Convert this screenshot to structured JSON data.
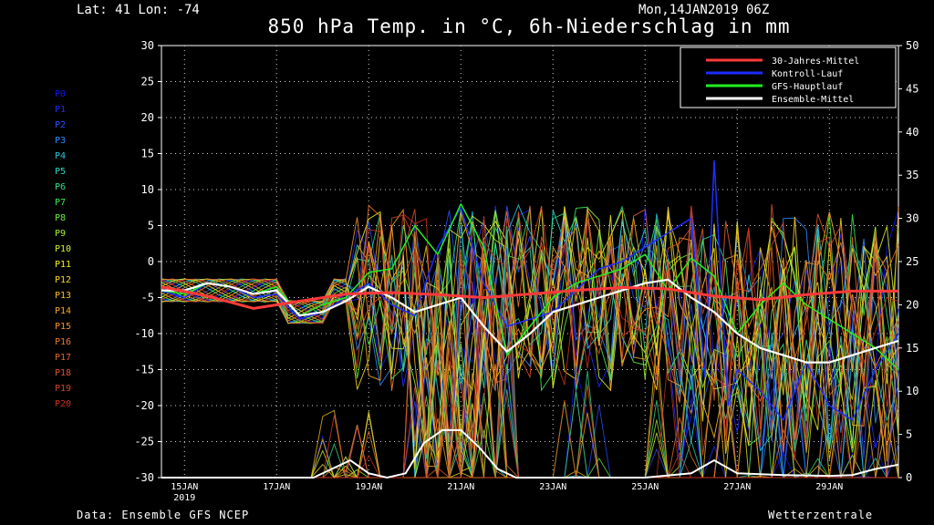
{
  "header": {
    "location": "Lat: 41 Lon: -74",
    "run": "Mon,14JAN2019 06Z"
  },
  "footer": {
    "source": "Data: Ensemble GFS NCEP",
    "brand": "Wetterzentrale"
  },
  "members": [
    {
      "label": "P0",
      "color": "#1515ff"
    },
    {
      "label": "P1",
      "color": "#1e2dff"
    },
    {
      "label": "P2",
      "color": "#2850ff"
    },
    {
      "label": "P3",
      "color": "#2c8cff"
    },
    {
      "label": "P4",
      "color": "#27c8e6"
    },
    {
      "label": "P5",
      "color": "#2dd8c4"
    },
    {
      "label": "P6",
      "color": "#2fe08a"
    },
    {
      "label": "P7",
      "color": "#3cea56"
    },
    {
      "label": "P8",
      "color": "#64f03c"
    },
    {
      "label": "P9",
      "color": "#a0f032"
    },
    {
      "label": "P10",
      "color": "#d6f02a"
    },
    {
      "label": "P11",
      "color": "#f5f020"
    },
    {
      "label": "P12",
      "color": "#f8d820"
    },
    {
      "label": "P13",
      "color": "#f8c020"
    },
    {
      "label": "P14",
      "color": "#f8a820"
    },
    {
      "label": "P15",
      "color": "#f89028"
    },
    {
      "label": "P16",
      "color": "#f07828"
    },
    {
      "label": "P17",
      "color": "#e86428"
    },
    {
      "label": "P18",
      "color": "#e05028"
    },
    {
      "label": "P19",
      "color": "#d84028"
    },
    {
      "label": "P20",
      "color": "#c83020"
    }
  ],
  "chart_data": {
    "type": "line",
    "title": "850 hPa Temp. in °C, 6h-Niederschlag in mm",
    "ylim": [
      -30,
      30
    ],
    "y2lim": [
      0,
      50
    ],
    "yticks": [
      "30",
      "25",
      "20",
      "15",
      "10",
      "5",
      "0",
      "-5",
      "-10",
      "-15",
      "-20",
      "-25",
      "-30"
    ],
    "y2ticks": [
      "50",
      "45",
      "40",
      "35",
      "30",
      "25",
      "20",
      "15",
      "10",
      "5",
      "0"
    ],
    "xlim": [
      14.5,
      30.5
    ],
    "xticks": [
      {
        "x": 15,
        "label": "15JAN",
        "sub": "2019"
      },
      {
        "x": 17,
        "label": "17JAN",
        "sub": ""
      },
      {
        "x": 19,
        "label": "19JAN",
        "sub": ""
      },
      {
        "x": 21,
        "label": "21JAN",
        "sub": ""
      },
      {
        "x": 23,
        "label": "23JAN",
        "sub": ""
      },
      {
        "x": 25,
        "label": "25JAN",
        "sub": ""
      },
      {
        "x": 27,
        "label": "27JAN",
        "sub": ""
      },
      {
        "x": 29,
        "label": "29JAN",
        "sub": ""
      }
    ],
    "grid": true,
    "legend_position": "top-right",
    "legend": [
      {
        "name": "30-Jahres-Mittel",
        "color": "#ff3a3a"
      },
      {
        "name": "Kontroll-Lauf",
        "color": "#1e2dff"
      },
      {
        "name": "GFS-Hauptlauf",
        "color": "#22ee22"
      },
      {
        "name": "Ensemble-Mittel",
        "color": "#ffffff"
      }
    ],
    "series": [
      {
        "key": "clim",
        "color": "#ff3a3a",
        "width": 3,
        "x": [
          14.5,
          15.5,
          16.5,
          17.5,
          18.5,
          19.5,
          20.5,
          21.5,
          22.5,
          23.5,
          24.5,
          25.5,
          26.5,
          27.5,
          28.5,
          29.5,
          30.5
        ],
        "y": [
          -3.5,
          -4.8,
          -6.5,
          -5.5,
          -4.5,
          -4.3,
          -4.6,
          -5,
          -4.5,
          -4,
          -3.6,
          -3.8,
          -4.8,
          -5.3,
          -4.6,
          -4.1,
          -4.1
        ]
      },
      {
        "key": "control",
        "color": "#1e2dff",
        "width": 1.5,
        "x": [
          14.5,
          15,
          15.5,
          16,
          16.5,
          17,
          17.5,
          18,
          18.5,
          19,
          19.5,
          20,
          20.5,
          21,
          21.5,
          22,
          22.5,
          23,
          23.5,
          24,
          24.5,
          25,
          25.5,
          26,
          26.3,
          26.5,
          26.8,
          27,
          27.5,
          28,
          28.5,
          29,
          29.5,
          30,
          30.5
        ],
        "y": [
          -4,
          -5,
          -3,
          -3.5,
          -5,
          -4.5,
          -8,
          -7,
          -5,
          -3,
          -6,
          -7.5,
          2,
          7.5,
          -3,
          -9,
          -8,
          -7,
          -4,
          -1,
          0,
          2,
          4,
          6,
          -16,
          14,
          -20,
          -15,
          -18,
          -22,
          -14,
          -20,
          -22,
          -15,
          -10
        ]
      },
      {
        "key": "main",
        "color": "#22ee22",
        "width": 1.5,
        "x": [
          14.5,
          15,
          15.5,
          16,
          16.5,
          17,
          17.5,
          18,
          18.5,
          19,
          19.5,
          20,
          20.5,
          21,
          21.5,
          22,
          22.5,
          23,
          23.5,
          24,
          24.5,
          25,
          25.5,
          26,
          26.5,
          27,
          27.5,
          28,
          28.5,
          29,
          29.5,
          30,
          30.5
        ],
        "y": [
          -4,
          -4.5,
          -3,
          -3.5,
          -4.5,
          -3.5,
          -7.5,
          -6,
          -5,
          -1.5,
          -1,
          5,
          1,
          8,
          2,
          -13,
          -9,
          -5,
          -3,
          -2,
          -1,
          1,
          -4,
          0.5,
          -2,
          -10,
          -6,
          -3,
          -6,
          -8,
          -10,
          -12,
          -15
        ]
      },
      {
        "key": "mean",
        "color": "#ffffff",
        "width": 2.2,
        "x": [
          14.5,
          15,
          15.5,
          16,
          16.5,
          17,
          17.5,
          18,
          18.5,
          19,
          19.5,
          20,
          20.5,
          21,
          21.5,
          22,
          22.5,
          23,
          23.5,
          24,
          24.5,
          25,
          25.5,
          26,
          26.5,
          27,
          27.5,
          28,
          28.5,
          29,
          29.5,
          30,
          30.5
        ],
        "y": [
          -4,
          -4,
          -3,
          -3.5,
          -4.5,
          -4,
          -7.5,
          -7,
          -5.5,
          -3.5,
          -5,
          -7,
          -6,
          -5,
          -9,
          -12.5,
          -10,
          -7,
          -6,
          -5,
          -4,
          -3,
          -2.5,
          -5,
          -7,
          -10,
          -12,
          -13,
          -14,
          -14,
          -13,
          -12,
          -11
        ]
      }
    ],
    "precip": {
      "mean": {
        "x": [
          14.5,
          17.8,
          18.2,
          18.6,
          19.0,
          19.4,
          19.8,
          20.2,
          20.6,
          21.0,
          21.4,
          21.8,
          22.2,
          24.0,
          25.0,
          26.0,
          26.5,
          27.0,
          28.0,
          29.0,
          29.5,
          30.0,
          30.5
        ],
        "y": [
          0,
          0,
          1,
          2,
          0.5,
          0,
          0.5,
          4,
          5.5,
          5.5,
          3.5,
          1,
          0,
          0,
          0,
          0.5,
          2,
          0.5,
          0.3,
          0.2,
          0.3,
          1,
          1.5
        ]
      }
    }
  }
}
